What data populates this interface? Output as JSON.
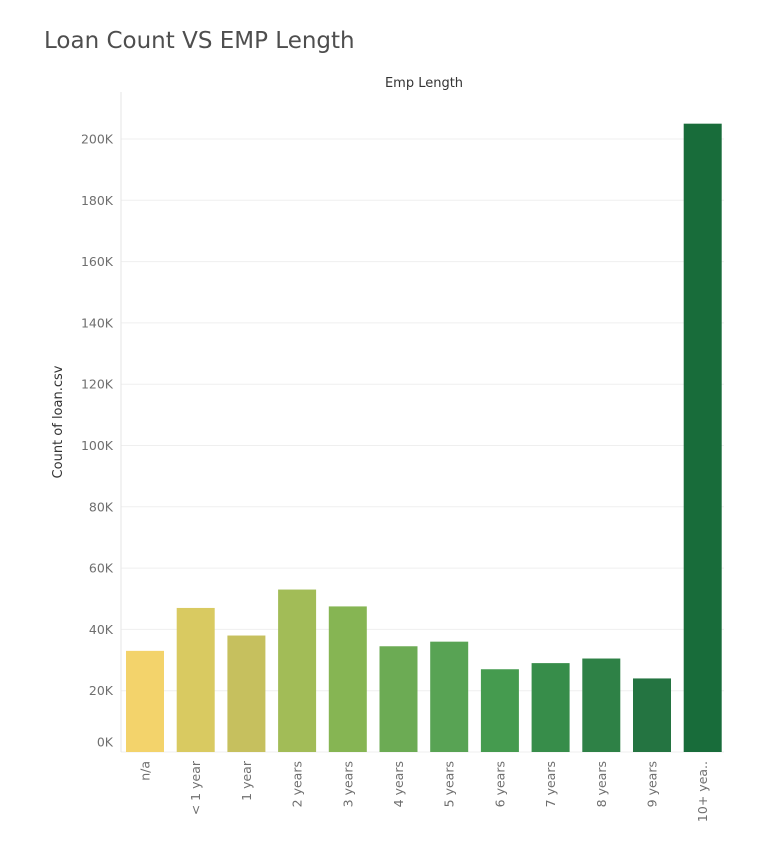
{
  "page_title": "Loan Count VS EMP Length",
  "chart_data": {
    "type": "bar",
    "title": "Loan Count VS EMP Length",
    "column_header": "Emp Length",
    "xlabel": "Emp Length",
    "ylabel": "Count of loan.csv",
    "ylim": [
      0,
      210000
    ],
    "y_ticks": [
      0,
      20000,
      40000,
      60000,
      80000,
      100000,
      120000,
      140000,
      160000,
      180000,
      200000
    ],
    "y_tick_labels": [
      "0K",
      "20K",
      "40K",
      "60K",
      "80K",
      "100K",
      "120K",
      "140K",
      "160K",
      "180K",
      "200K"
    ],
    "grid": true,
    "categories": [
      "n/a",
      "< 1 year",
      "1 year",
      "2 years",
      "3 years",
      "4 years",
      "5 years",
      "6 years",
      "7 years",
      "8 years",
      "9 years",
      "10+ yea.."
    ],
    "values": [
      33000,
      47000,
      38000,
      53000,
      47500,
      34500,
      36000,
      27000,
      29000,
      30500,
      24000,
      205000
    ],
    "colors": [
      "#f3d36b",
      "#d9ca61",
      "#c6c05e",
      "#a2bc57",
      "#86b553",
      "#6cab54",
      "#58a354",
      "#459b4f",
      "#378d4a",
      "#2e8146",
      "#247441",
      "#186c3a"
    ]
  }
}
